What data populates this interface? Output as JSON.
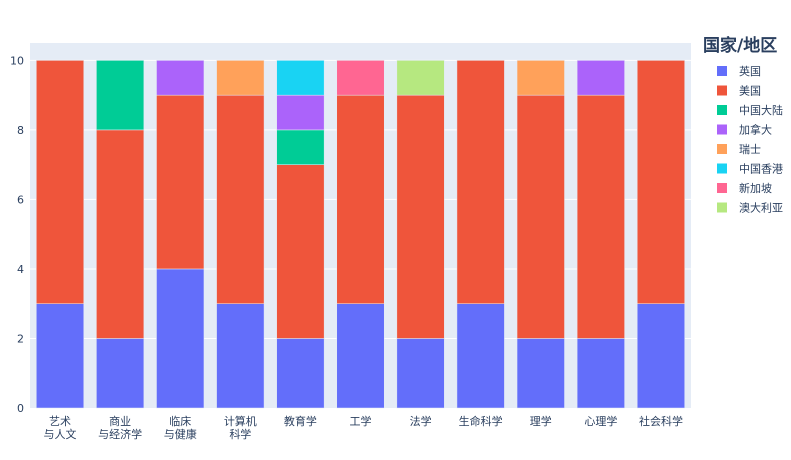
{
  "chart_data": {
    "type": "bar",
    "barmode": "stack",
    "categories": [
      [
        "艺术",
        "与人文"
      ],
      [
        "商业",
        "与经济学"
      ],
      [
        "临床",
        "与健康"
      ],
      [
        "计算机",
        "科学"
      ],
      [
        "教育学"
      ],
      [
        "工学"
      ],
      [
        "法学"
      ],
      [
        "生命科学"
      ],
      [
        "理学"
      ],
      [
        "心理学"
      ],
      [
        "社会科学"
      ]
    ],
    "series": [
      {
        "name": "英国",
        "color": "#636efa",
        "values": [
          3,
          2,
          4,
          3,
          2,
          3,
          2,
          3,
          2,
          2,
          3
        ]
      },
      {
        "name": "美国",
        "color": "#ef553b",
        "values": [
          7,
          6,
          5,
          6,
          5,
          6,
          7,
          7,
          7,
          7,
          7
        ]
      },
      {
        "name": "中国大陆",
        "color": "#00cc96",
        "values": [
          0,
          2,
          0,
          0,
          1,
          0,
          0,
          0,
          0,
          0,
          0
        ]
      },
      {
        "name": "加拿大",
        "color": "#ab63fa",
        "values": [
          0,
          0,
          1,
          0,
          1,
          0,
          0,
          0,
          0,
          1,
          0
        ]
      },
      {
        "name": "瑞士",
        "color": "#ffa15a",
        "values": [
          0,
          0,
          0,
          1,
          0,
          0,
          0,
          0,
          1,
          0,
          0
        ]
      },
      {
        "name": "中国香港",
        "color": "#19d3f3",
        "values": [
          0,
          0,
          0,
          0,
          1,
          0,
          0,
          0,
          0,
          0,
          0
        ]
      },
      {
        "name": "新加坡",
        "color": "#ff6692",
        "values": [
          0,
          0,
          0,
          0,
          0,
          1,
          0,
          0,
          0,
          0,
          0
        ]
      },
      {
        "name": "澳大利亚",
        "color": "#b6e880",
        "values": [
          0,
          0,
          0,
          0,
          0,
          0,
          1,
          0,
          0,
          0,
          0
        ]
      }
    ],
    "ylim": [
      0,
      10.5
    ],
    "yticks": [
      0,
      2,
      4,
      6,
      8,
      10
    ],
    "grid": true,
    "legend_title": "国家/地区",
    "legend_position": "right"
  }
}
